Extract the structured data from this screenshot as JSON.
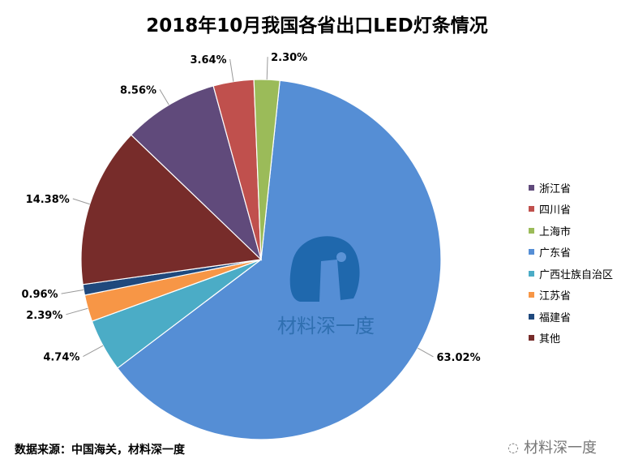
{
  "chart_data": {
    "type": "pie",
    "title": "2018年10月我国各省出口LED灯条情况",
    "slices": [
      {
        "label": "广东省",
        "value": 63.02,
        "display": "63.02%",
        "color": "#558ED5"
      },
      {
        "label": "广西壮族自治区",
        "value": 4.74,
        "display": "4.74%",
        "color": "#4BACC6"
      },
      {
        "label": "江苏省",
        "value": 2.39,
        "display": "2.39%",
        "color": "#F79646"
      },
      {
        "label": "福建省",
        "value": 0.96,
        "display": "0.96%",
        "color": "#1F497D"
      },
      {
        "label": "其他",
        "value": 14.38,
        "display": "14.38%",
        "color": "#772C2A"
      },
      {
        "label": "浙江省",
        "value": 8.56,
        "display": "8.56%",
        "color": "#604A7B"
      },
      {
        "label": "四川省",
        "value": 3.64,
        "display": "3.64%",
        "color": "#C0504D"
      },
      {
        "label": "上海市",
        "value": 2.3,
        "display": "2.30%",
        "color": "#9BBB59"
      }
    ],
    "legend_order": [
      "浙江省",
      "四川省",
      "上海市",
      "广东省",
      "广西壮族自治区",
      "江苏省",
      "福建省",
      "其他"
    ],
    "legend_position": "right"
  },
  "watermark": {
    "text": "材料深一度"
  },
  "footer": {
    "source": "数据来源：中国海关，材料深一度",
    "brand": "材料深一度"
  }
}
